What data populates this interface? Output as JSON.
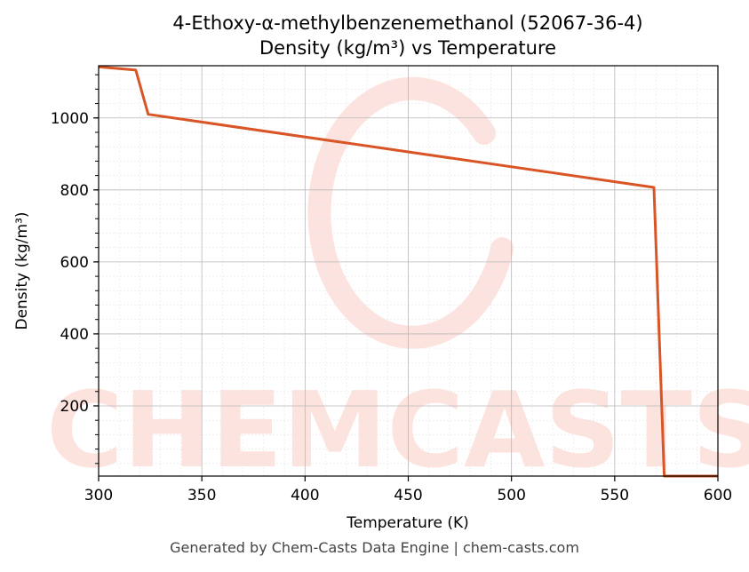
{
  "chart_data": {
    "type": "line",
    "title": "4-Ethoxy-α-methylbenzenemethanol (52067-36-4)",
    "subtitle": "Density (kg/m³) vs Temperature",
    "xlabel": "Temperature (K)",
    "ylabel": "Density (kg/m³)",
    "xlim": [
      300,
      600
    ],
    "ylim": [
      5,
      1145
    ],
    "xticks": [
      300,
      350,
      400,
      450,
      500,
      550,
      600
    ],
    "yticks": [
      200,
      400,
      600,
      800,
      1000
    ],
    "grid": true,
    "series": [
      {
        "color": "#d95525",
        "x": [
          300,
          318,
          324,
          569,
          574,
          600
        ],
        "y": [
          1142,
          1133,
          1010,
          807,
          5,
          5
        ]
      }
    ]
  },
  "watermark": {
    "text": "CHEMCASTS",
    "color": "#fde0db"
  },
  "footer": "Generated by Chem-Casts Data Engine | chem-casts.com"
}
